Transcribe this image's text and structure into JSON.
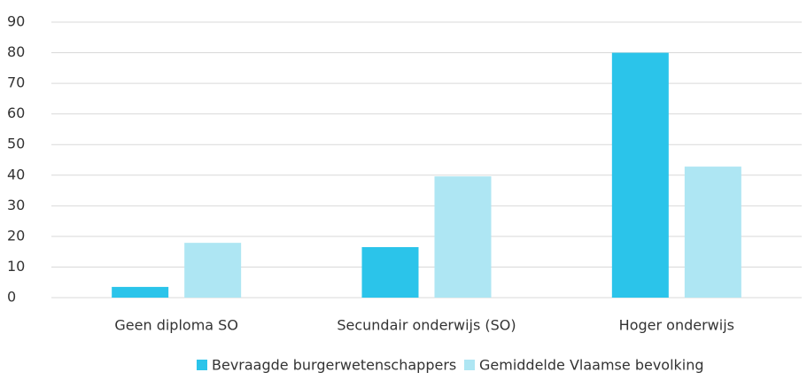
{
  "chart_data": {
    "type": "bar",
    "categories": [
      "Geen diploma SO",
      "Secundair onderwijs (SO)",
      "Hoger onderwijs"
    ],
    "series": [
      {
        "name": "Bevraagde burgerwetenschappers",
        "color": "#2bc4ea",
        "values": [
          3.5,
          16.5,
          80
        ]
      },
      {
        "name": "Gemiddelde Vlaamse bevolking",
        "color": "#aee6f3",
        "values": [
          17.9,
          39.6,
          42.8
        ]
      }
    ],
    "ylim": [
      0,
      90
    ],
    "yticks": [
      0,
      10,
      20,
      30,
      40,
      50,
      60,
      70,
      80,
      90
    ],
    "grid": true,
    "legend": "bottom"
  }
}
